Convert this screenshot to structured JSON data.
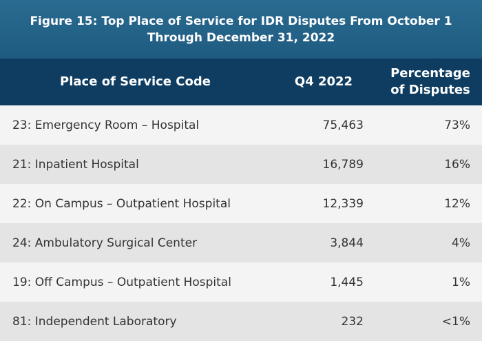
{
  "header": {
    "title_lines": [
      "Figure 15: Top Place of Service for IDR Disputes From October 1",
      "Through December 31, 2022"
    ]
  },
  "table": {
    "columns": [
      "Place of Service Code",
      "Q4 2022",
      "Percentage of Disputes"
    ],
    "rows": [
      [
        "23: Emergency Room – Hospital",
        "75,463",
        "73%"
      ],
      [
        "21: Inpatient Hospital",
        "16,789",
        "16%"
      ],
      [
        "22: On Campus – Outpatient Hospital",
        "12,339",
        "12%"
      ],
      [
        "24: Ambulatory Surgical Center",
        "3,844",
        "4%"
      ],
      [
        "19: Off Campus – Outpatient Hospital",
        "1,445",
        "1%"
      ],
      [
        "81: Independent Laboratory",
        "232",
        "<1%"
      ]
    ]
  }
}
